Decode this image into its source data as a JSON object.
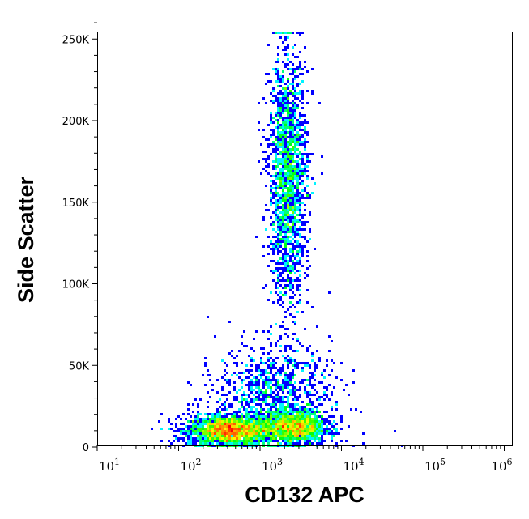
{
  "chart_data": {
    "type": "scatter",
    "subtype": "flow-cytometry-density-dot-plot",
    "xlabel": "CD132 APC",
    "ylabel": "Side Scatter",
    "x_scale": "log",
    "xlim": [
      10,
      1260000
    ],
    "ylim": [
      -1000,
      262144
    ],
    "x_ticks": [
      {
        "base": "10",
        "exp": "1",
        "value": 10
      },
      {
        "base": "10",
        "exp": "2",
        "value": 100
      },
      {
        "base": "10",
        "exp": "3",
        "value": 1000
      },
      {
        "base": "10",
        "exp": "4",
        "value": 10000
      },
      {
        "base": "10",
        "exp": "5",
        "value": 100000
      },
      {
        "base": "10",
        "exp": "6",
        "value": 1000000
      }
    ],
    "y_ticks": [
      {
        "label": "0",
        "value": 0
      },
      {
        "label": "50K",
        "value": 50000
      },
      {
        "label": "100K",
        "value": 100000
      },
      {
        "label": "150K",
        "value": 150000
      },
      {
        "label": "200K",
        "value": 200000
      },
      {
        "label": "250K",
        "value": 250000
      }
    ],
    "grid": false,
    "legend": "none",
    "colormap": [
      "#0000ff",
      "#00ffff",
      "#00ff00",
      "#ffff00",
      "#ff0000"
    ],
    "populations": [
      {
        "x_center": 420,
        "x_log_sd": 0.25,
        "y_center": 10000,
        "y_sd": 4500,
        "events": 2200
      },
      {
        "x_center": 2600,
        "x_log_sd": 0.2,
        "y_center": 12000,
        "y_sd": 5000,
        "events": 1400
      },
      {
        "x_center": 2200,
        "x_log_sd": 0.12,
        "y_center": 165000,
        "y_sd": 38000,
        "events": 2000
      },
      {
        "x_center": 1500,
        "x_log_sd": 0.35,
        "y_center": 35000,
        "y_sd": 14000,
        "events": 900
      },
      {
        "x_center": 1200,
        "x_log_sd": 0.55,
        "y_center": 12000,
        "y_sd": 9000,
        "events": 250
      }
    ]
  }
}
